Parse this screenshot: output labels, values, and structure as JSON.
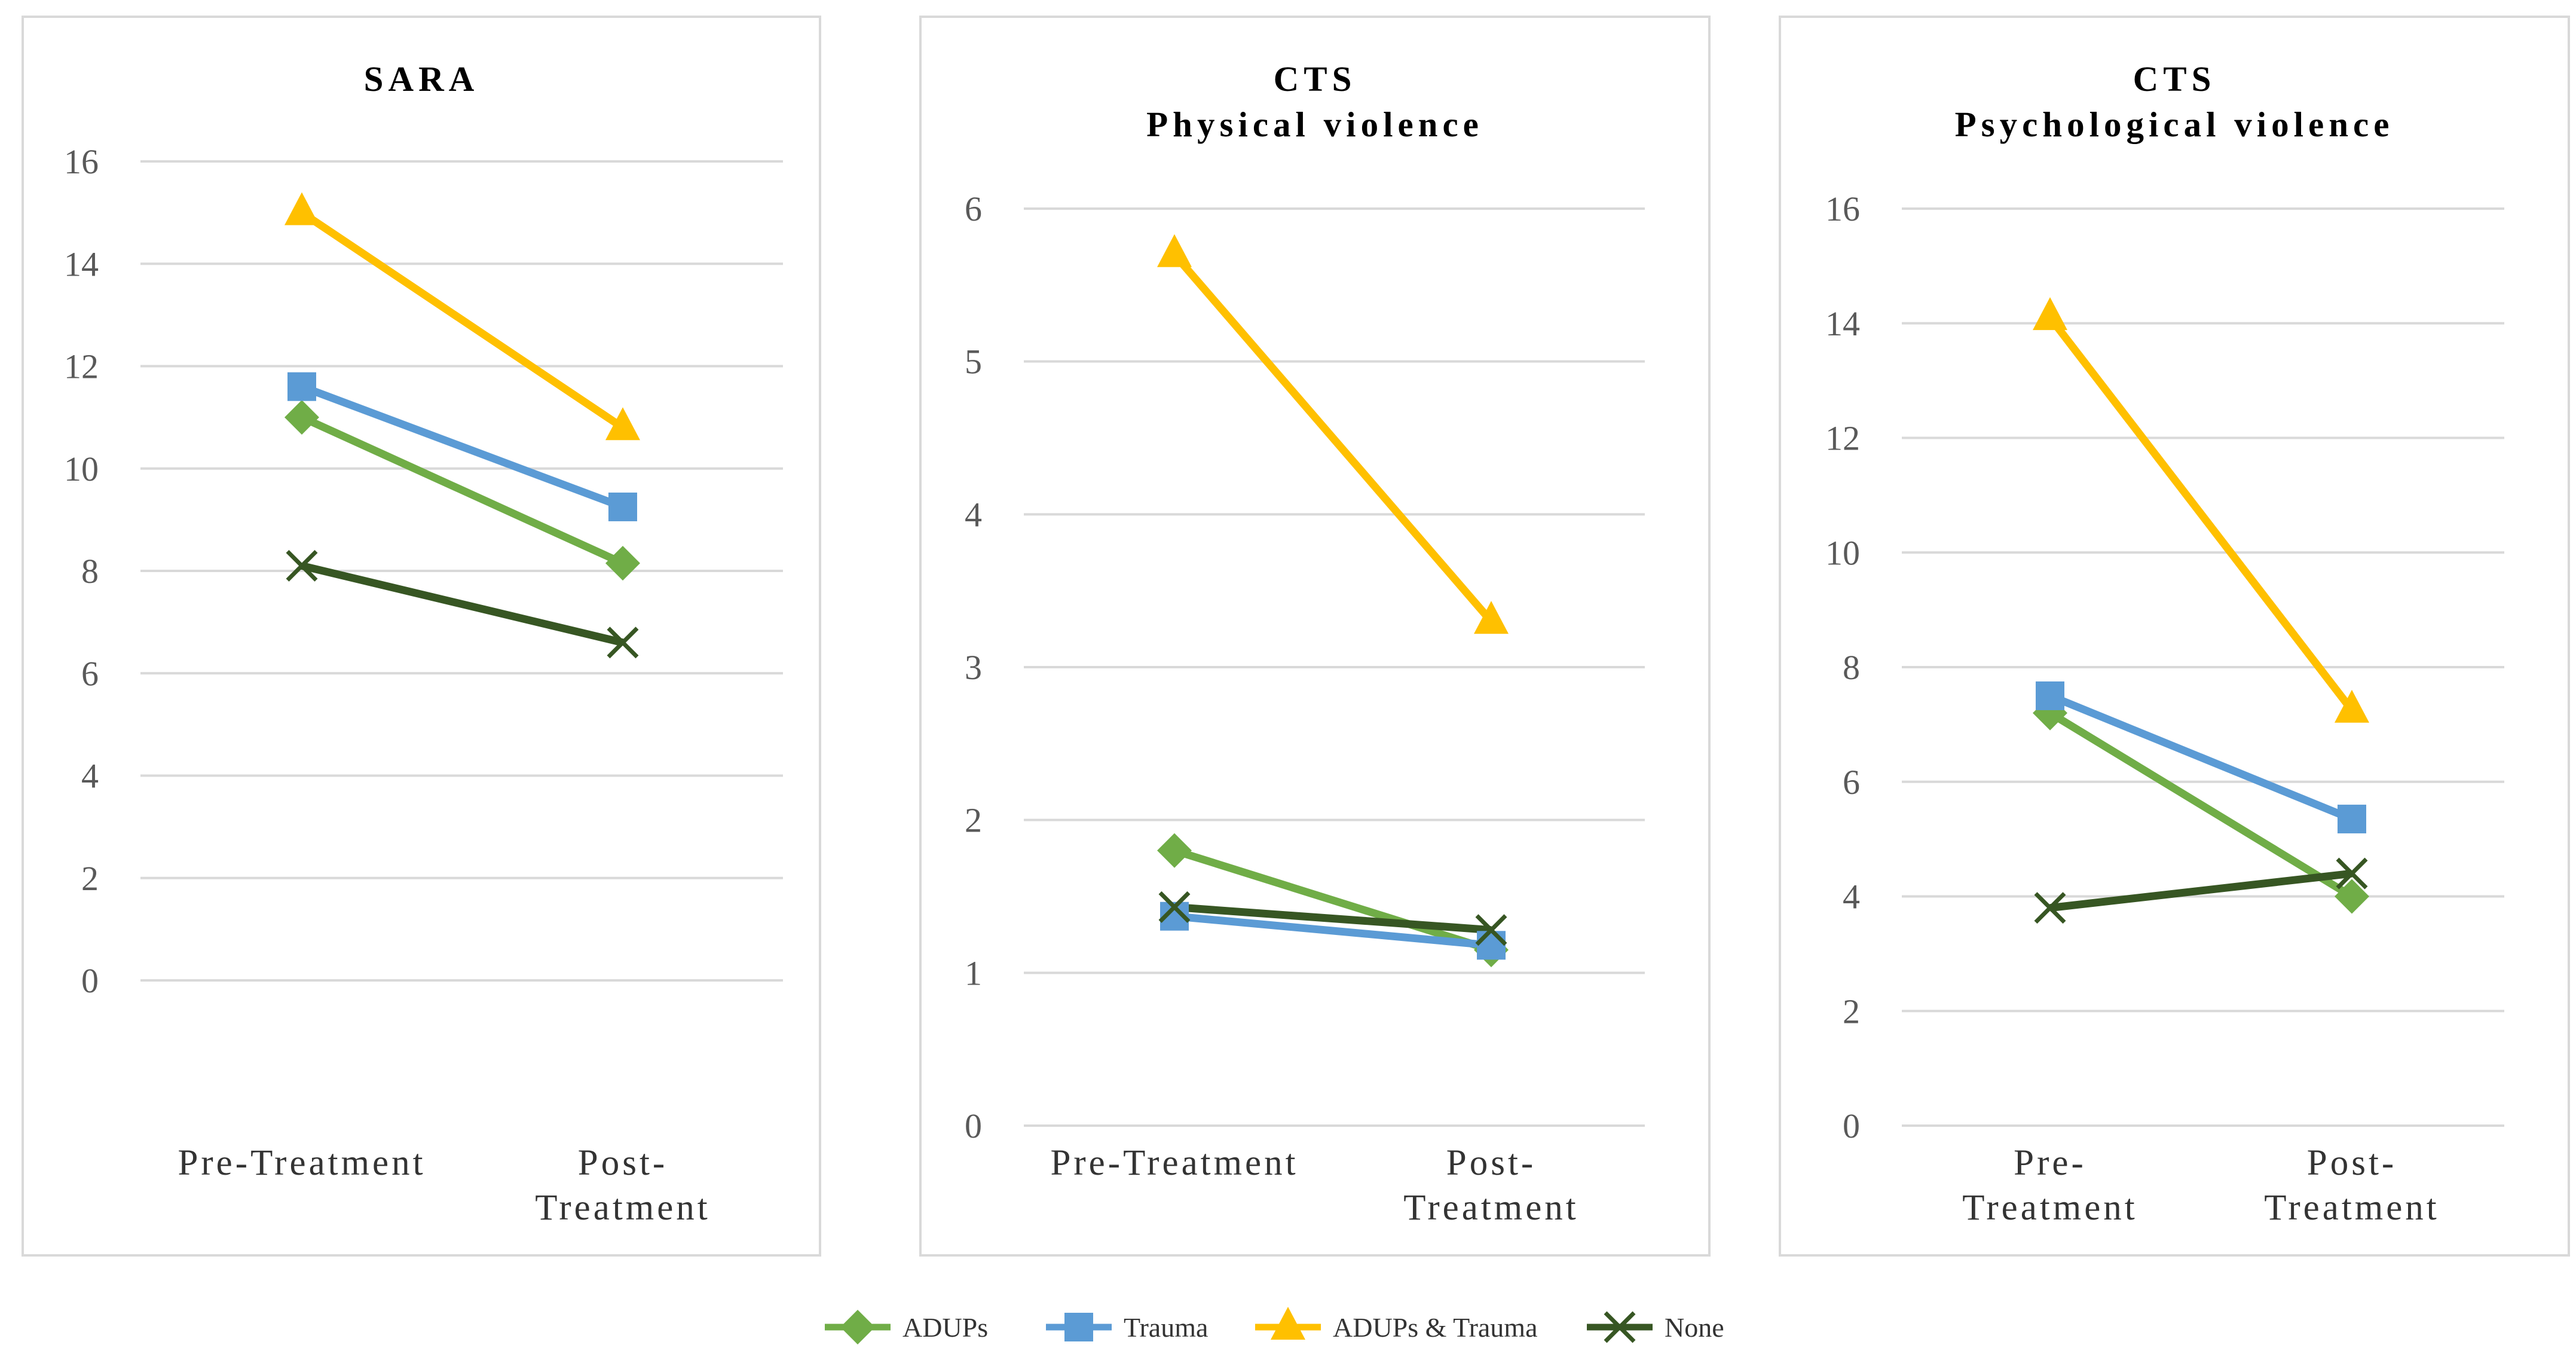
{
  "figure": {
    "legend": [
      {
        "name": "ADUPs",
        "color": "#70AD47",
        "marker": "diamond"
      },
      {
        "name": "Trauma",
        "color": "#5B9BD5",
        "marker": "square"
      },
      {
        "name": "ADUPs & Trauma",
        "color": "#FFC000",
        "marker": "triangle"
      },
      {
        "name": "None",
        "color": "#375623",
        "marker": "x"
      }
    ]
  },
  "chart_data": [
    {
      "type": "line",
      "title": [
        "SARA"
      ],
      "categories": [
        [
          "Pre-Treatment"
        ],
        [
          "Post-",
          "Treatment"
        ]
      ],
      "ylim": [
        0,
        16
      ],
      "yticks": [
        0,
        2,
        4,
        6,
        8,
        10,
        12,
        14,
        16
      ],
      "grid": true,
      "series": [
        {
          "name": "ADUPs",
          "values": [
            11.0,
            8.15
          ]
        },
        {
          "name": "Trauma",
          "values": [
            11.6,
            9.25
          ]
        },
        {
          "name": "ADUPs & Trauma",
          "values": [
            15.0,
            10.8
          ]
        },
        {
          "name": "None",
          "values": [
            8.1,
            6.6
          ]
        }
      ]
    },
    {
      "type": "line",
      "title": [
        "CTS",
        "Physical violence"
      ],
      "categories": [
        [
          "Pre-Treatment"
        ],
        [
          "Post-",
          "Treatment"
        ]
      ],
      "ylim": [
        0,
        6
      ],
      "yticks": [
        0,
        1,
        2,
        3,
        4,
        5,
        6
      ],
      "grid": true,
      "series": [
        {
          "name": "ADUPs",
          "values": [
            1.8,
            1.15
          ]
        },
        {
          "name": "Trauma",
          "values": [
            1.37,
            1.18
          ]
        },
        {
          "name": "ADUPs & Trauma",
          "values": [
            5.7,
            3.3
          ]
        },
        {
          "name": "None",
          "values": [
            1.43,
            1.28
          ]
        }
      ]
    },
    {
      "type": "line",
      "title": [
        "CTS",
        "Psychological violence"
      ],
      "categories": [
        [
          "Pre-",
          "Treatment"
        ],
        [
          "Post-",
          "Treatment"
        ]
      ],
      "ylim": [
        0,
        16
      ],
      "yticks": [
        0,
        2,
        4,
        6,
        8,
        10,
        12,
        14,
        16
      ],
      "grid": true,
      "series": [
        {
          "name": "ADUPs",
          "values": [
            7.2,
            4.0
          ]
        },
        {
          "name": "Trauma",
          "values": [
            7.5,
            5.35
          ]
        },
        {
          "name": "ADUPs & Trauma",
          "values": [
            14.1,
            7.25
          ]
        },
        {
          "name": "None",
          "values": [
            3.8,
            4.4
          ]
        }
      ]
    }
  ]
}
